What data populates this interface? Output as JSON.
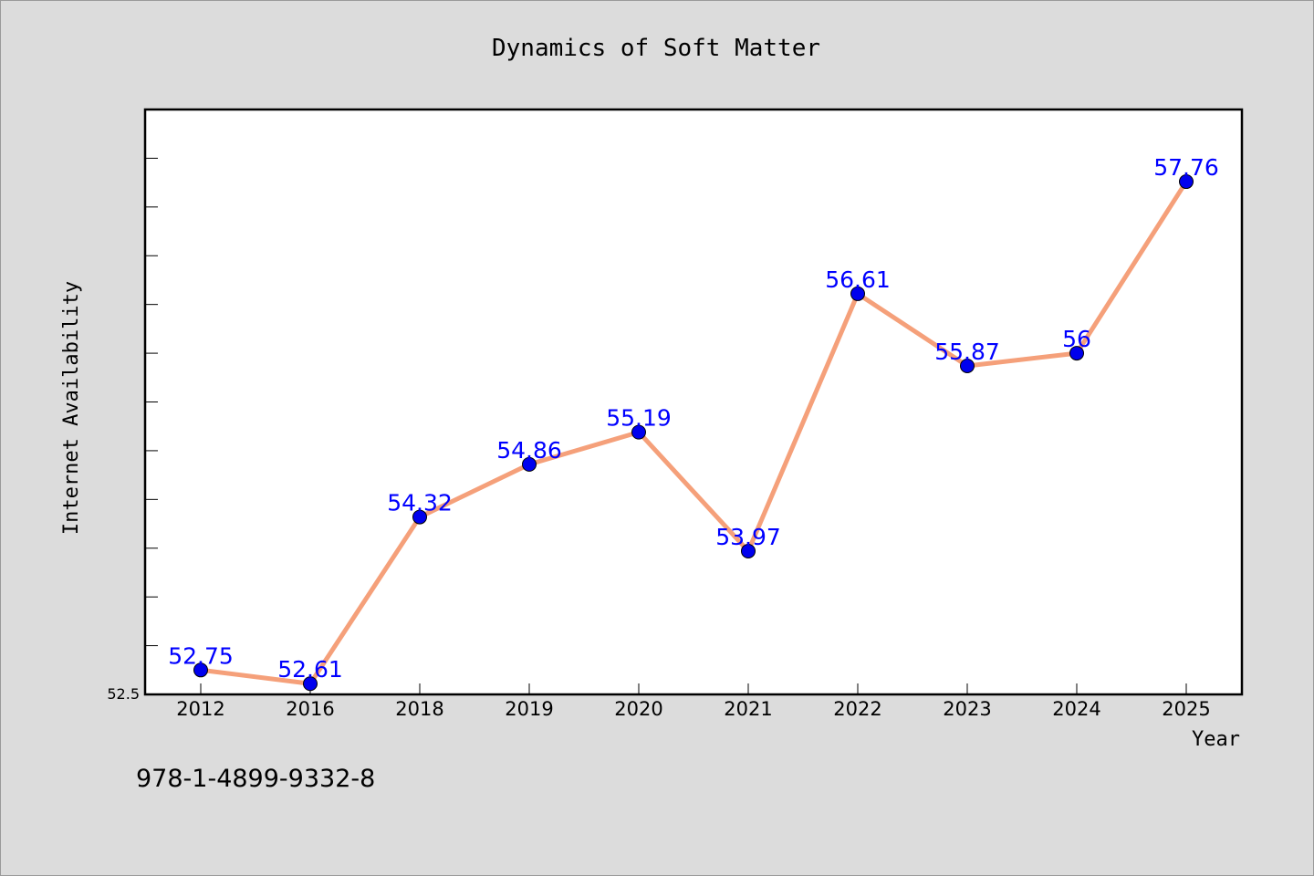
{
  "chart_data": {
    "type": "line",
    "title": "Dynamics of Soft Matter",
    "xlabel": "Year",
    "ylabel": "Internet Availability",
    "categories": [
      "2012",
      "2016",
      "2018",
      "2019",
      "2020",
      "2021",
      "2022",
      "2023",
      "2024",
      "2025"
    ],
    "series": [
      {
        "values": [
          52.75,
          52.61,
          54.32,
          54.86,
          55.19,
          53.97,
          56.61,
          55.87,
          56,
          57.76
        ],
        "labels": [
          "52.75",
          "52.61",
          "54.32",
          "54.86",
          "55.19",
          "53.97",
          "56.61",
          "55.87",
          "56",
          "57.76"
        ]
      }
    ],
    "ylim": [
      52.5,
      58.5
    ],
    "yticks_labeled": [
      "52.5"
    ],
    "line_color": "#f5a07a",
    "marker_color": "#0000ee",
    "label_color": "#0000ff",
    "grid": false,
    "legend": "none"
  },
  "footer": {
    "isbn": "978-1-4899-9332-8"
  }
}
